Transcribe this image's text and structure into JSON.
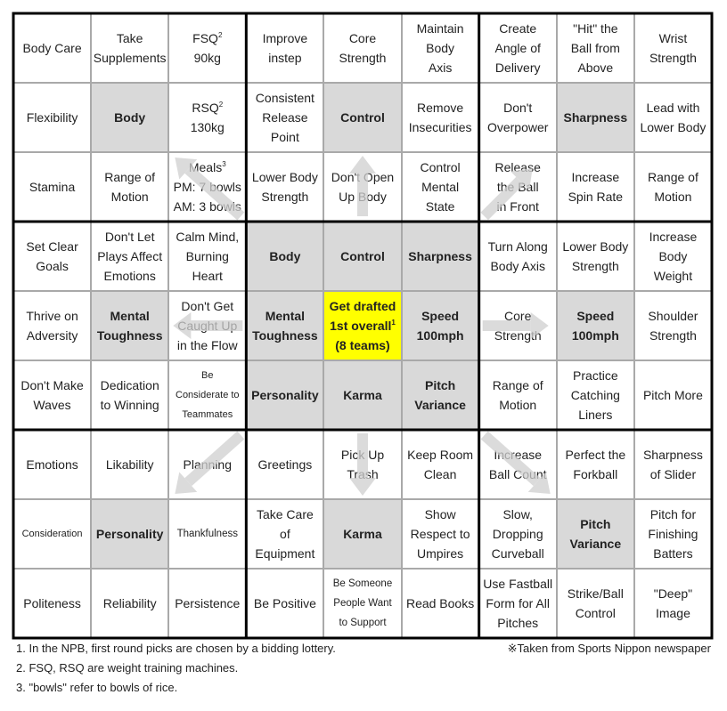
{
  "colors": {
    "highlight": "#d9d9d9",
    "goal": "#ffff00",
    "thick_line": "#000000",
    "thin_line": "#a9a9a9",
    "arrow": "#d0d0d0"
  },
  "grid": [
    [
      {
        "lines": [
          "Body Care"
        ]
      },
      {
        "lines": [
          "Take",
          "Supplements"
        ]
      },
      {
        "lines": [
          "FSQ",
          "90kg"
        ],
        "sup": "2"
      },
      {
        "lines": [
          "Improve",
          "instep"
        ]
      },
      {
        "lines": [
          "Core",
          "Strength"
        ]
      },
      {
        "lines": [
          "Maintain",
          "Body",
          "Axis"
        ]
      },
      {
        "lines": [
          "Create",
          "Angle of",
          "Delivery"
        ]
      },
      {
        "lines": [
          "\"Hit\" the",
          "Ball from",
          "Above"
        ]
      },
      {
        "lines": [
          "Wrist",
          "Strength"
        ]
      }
    ],
    [
      {
        "lines": [
          "Flexibility"
        ]
      },
      {
        "lines": [
          "Body"
        ],
        "hl": true
      },
      {
        "lines": [
          "RSQ",
          "130kg"
        ],
        "sup": "2"
      },
      {
        "lines": [
          "Consistent",
          "Release",
          "Point"
        ]
      },
      {
        "lines": [
          "Control"
        ],
        "hl": true
      },
      {
        "lines": [
          "Remove",
          "Insecurities"
        ]
      },
      {
        "lines": [
          "Don't",
          "Overpower"
        ]
      },
      {
        "lines": [
          "Sharpness"
        ],
        "hl": true
      },
      {
        "lines": [
          "Lead with",
          "Lower Body"
        ]
      }
    ],
    [
      {
        "lines": [
          "Stamina"
        ]
      },
      {
        "lines": [
          "Range of",
          "Motion"
        ]
      },
      {
        "lines": [
          "Meals",
          "PM: 7 bowls",
          "AM: 3 bowls"
        ],
        "sup": "3"
      },
      {
        "lines": [
          "Lower Body",
          "Strength"
        ]
      },
      {
        "lines": [
          "Don't Open",
          "Up Body"
        ]
      },
      {
        "lines": [
          "Control",
          "Mental",
          "State"
        ]
      },
      {
        "lines": [
          "Release",
          "the Ball",
          "in Front"
        ]
      },
      {
        "lines": [
          "Increase",
          "Spin Rate"
        ]
      },
      {
        "lines": [
          "Range of",
          "Motion"
        ]
      }
    ],
    [
      {
        "lines": [
          "Set Clear",
          "Goals"
        ]
      },
      {
        "lines": [
          "Don't Let",
          "Plays Affect",
          "Emotions"
        ]
      },
      {
        "lines": [
          "Calm Mind,",
          "Burning",
          "Heart"
        ]
      },
      {
        "lines": [
          "Body"
        ],
        "hl": true
      },
      {
        "lines": [
          "Control"
        ],
        "hl": true
      },
      {
        "lines": [
          "Sharpness"
        ],
        "hl": true
      },
      {
        "lines": [
          "Turn Along",
          "Body Axis"
        ]
      },
      {
        "lines": [
          "Lower Body",
          "Strength"
        ]
      },
      {
        "lines": [
          "Increase",
          "Body",
          "Weight"
        ]
      }
    ],
    [
      {
        "lines": [
          "Thrive on",
          "Adversity"
        ]
      },
      {
        "lines": [
          "Mental",
          "Toughness"
        ],
        "hl": true
      },
      {
        "lines": [
          "Don't Get",
          "Caught Up",
          "in the Flow"
        ]
      },
      {
        "lines": [
          "Mental",
          "Toughness"
        ],
        "hl": true
      },
      {
        "lines": [
          "Get drafted",
          "1st overall",
          "(8 teams)"
        ],
        "sup": "1",
        "goal": true
      },
      {
        "lines": [
          "Speed",
          "100mph"
        ],
        "hl": true
      },
      {
        "lines": [
          "Core",
          "Strength"
        ]
      },
      {
        "lines": [
          "Speed",
          "100mph"
        ],
        "hl": true
      },
      {
        "lines": [
          "Shoulder",
          "Strength"
        ]
      }
    ],
    [
      {
        "lines": [
          "Don't Make",
          "Waves"
        ]
      },
      {
        "lines": [
          "Dedication",
          "to Winning"
        ]
      },
      {
        "lines": [
          "Be",
          "Considerate to",
          "Teammates"
        ],
        "size": "xsmall"
      },
      {
        "lines": [
          "Personality"
        ],
        "hl": true
      },
      {
        "lines": [
          "Karma"
        ],
        "hl": true
      },
      {
        "lines": [
          "Pitch",
          "Variance"
        ],
        "hl": true
      },
      {
        "lines": [
          "Range of",
          "Motion"
        ]
      },
      {
        "lines": [
          "Practice",
          "Catching",
          "Liners"
        ]
      },
      {
        "lines": [
          "Pitch More"
        ]
      }
    ],
    [
      {
        "lines": [
          "Emotions"
        ]
      },
      {
        "lines": [
          "Likability"
        ]
      },
      {
        "lines": [
          "Planning"
        ]
      },
      {
        "lines": [
          "Greetings"
        ]
      },
      {
        "lines": [
          "Pick Up",
          "Trash"
        ]
      },
      {
        "lines": [
          "Keep Room",
          "Clean"
        ]
      },
      {
        "lines": [
          "Increase",
          "Ball Count"
        ]
      },
      {
        "lines": [
          "Perfect the",
          "Forkball"
        ]
      },
      {
        "lines": [
          "Sharpness",
          "of Slider"
        ]
      }
    ],
    [
      {
        "lines": [
          "Consideration"
        ],
        "size": "xsmall"
      },
      {
        "lines": [
          "Personality"
        ],
        "hl": true
      },
      {
        "lines": [
          "Thankfulness"
        ],
        "size": "small"
      },
      {
        "lines": [
          "Take Care",
          "of",
          "Equipment"
        ]
      },
      {
        "lines": [
          "Karma"
        ],
        "hl": true
      },
      {
        "lines": [
          "Show",
          "Respect to",
          "Umpires"
        ]
      },
      {
        "lines": [
          "Slow,",
          "Dropping",
          "Curveball"
        ]
      },
      {
        "lines": [
          "Pitch",
          "Variance"
        ],
        "hl": true
      },
      {
        "lines": [
          "Pitch for",
          "Finishing",
          "Batters"
        ]
      }
    ],
    [
      {
        "lines": [
          "Politeness"
        ]
      },
      {
        "lines": [
          "Reliability"
        ]
      },
      {
        "lines": [
          "Persistence"
        ]
      },
      {
        "lines": [
          "Be Positive"
        ]
      },
      {
        "lines": [
          "Be Someone",
          "People Want",
          "to Support"
        ],
        "size": "small"
      },
      {
        "lines": [
          "Read Books"
        ]
      },
      {
        "lines": [
          "Use Fastball",
          "Form for All",
          "Pitches"
        ]
      },
      {
        "lines": [
          "Strike/Ball",
          "Control"
        ]
      },
      {
        "lines": [
          "\"Deep\"",
          "Image"
        ]
      }
    ]
  ],
  "footnotes": [
    "1. In the NPB, first round picks are chosen by a bidding lottery.",
    "2. FSQ, RSQ are weight training machines.",
    "3. \"bowls\" refer to bowls of rice."
  ],
  "source": "※Taken from Sports Nippon newspaper"
}
